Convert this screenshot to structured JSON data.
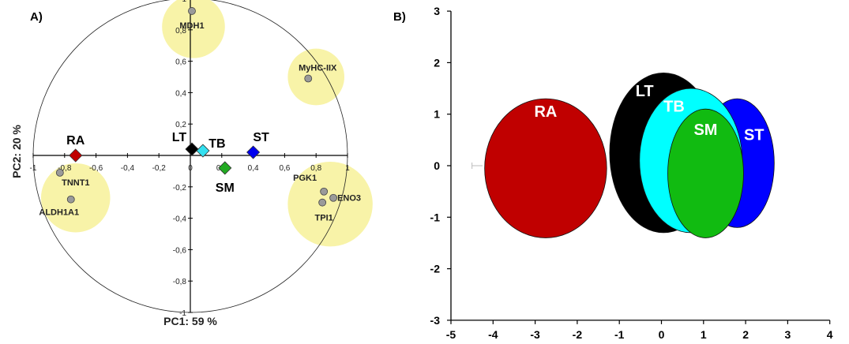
{
  "panels": [
    {
      "panel_label": "A)",
      "chart_data": {
        "type": "scatter",
        "xlabel": "PC1: 59 %",
        "ylabel": "PC2: 20 %",
        "xlim": [
          -1,
          1
        ],
        "ylim": [
          -1,
          1
        ],
        "x_ticks": [
          "-1",
          "-0,8",
          "-0,6",
          "-0,4",
          "-0,2",
          "0",
          "0,2",
          "0,4",
          "0,6",
          "0,8",
          "1"
        ],
        "y_ticks": [
          "-1",
          "-0,8",
          "-0,6",
          "-0,4",
          "-0,2",
          "0",
          "0,2",
          "0,4",
          "0,6",
          "0,8",
          "1"
        ],
        "unit_circle": true,
        "variables": [
          {
            "label": "MDH1",
            "x": 0.01,
            "y": 0.92
          },
          {
            "label": "MyHC-IIX",
            "x": 0.75,
            "y": 0.49
          },
          {
            "label": "TNNT1",
            "x": -0.83,
            "y": -0.11
          },
          {
            "label": "ALDH1A1",
            "x": -0.76,
            "y": -0.28
          },
          {
            "label": "PGK1",
            "x": 0.85,
            "y": -0.23
          },
          {
            "label": "ENO3",
            "x": 0.91,
            "y": -0.27
          },
          {
            "label": "TPI1",
            "x": 0.84,
            "y": -0.3
          }
        ],
        "variable_labels_shown": [
          "MDH1",
          "MyHC-IIX",
          "TNNT1",
          "ALDH1A1",
          "PGK1",
          "ENO3",
          "TPI1"
        ],
        "highlight_clusters": [
          {
            "x": 0.02,
            "y": 0.82,
            "r": 0.2
          },
          {
            "x": 0.8,
            "y": 0.5,
            "r": 0.18
          },
          {
            "x": -0.73,
            "y": -0.27,
            "r": 0.22
          },
          {
            "x": 0.89,
            "y": -0.31,
            "r": 0.27
          }
        ],
        "groups": [
          {
            "name": "RA",
            "x": -0.73,
            "y": 0.0,
            "color": "#c00000"
          },
          {
            "name": "LT",
            "x": 0.01,
            "y": 0.04,
            "color": "#000000"
          },
          {
            "name": "TB",
            "x": 0.08,
            "y": 0.03,
            "color": "#33e0f0"
          },
          {
            "name": "SM",
            "x": 0.22,
            "y": -0.08,
            "color": "#22aa22"
          },
          {
            "name": "ST",
            "x": 0.4,
            "y": 0.02,
            "color": "#0000ee"
          }
        ],
        "highlight_color": "#f8f3a8"
      }
    },
    {
      "panel_label": "B)",
      "chart_data": {
        "type": "scatter",
        "xlim": [
          -5,
          4
        ],
        "ylim": [
          -3,
          3
        ],
        "x_ticks": [
          "-5",
          "-4",
          "-3",
          "-2",
          "-1",
          "0",
          "1",
          "2",
          "3",
          "4"
        ],
        "y_ticks": [
          "3",
          "2",
          "1",
          "0",
          "-1",
          "-2",
          "-3"
        ],
        "ellipses": [
          {
            "name": "RA",
            "cx": -2.75,
            "cy": -0.05,
            "rx": 1.45,
            "ry": 1.35,
            "color": "#c00000"
          },
          {
            "name": "ST",
            "cx": 1.8,
            "cy": 0.05,
            "rx": 0.88,
            "ry": 1.25,
            "color": "#0000ff"
          },
          {
            "name": "LT",
            "cx": 0.05,
            "cy": 0.25,
            "rx": 1.28,
            "ry": 1.55,
            "color": "#000000"
          },
          {
            "name": "TB",
            "cx": 0.7,
            "cy": 0.1,
            "rx": 1.22,
            "ry": 1.4,
            "color": "#00ffff"
          },
          {
            "name": "SM",
            "cx": 1.05,
            "cy": -0.15,
            "rx": 0.9,
            "ry": 1.25,
            "color": "#11bb11"
          }
        ],
        "label_positions_data": [
          {
            "name": "RA",
            "x": -2.75,
            "y": 0.95
          },
          {
            "name": "LT",
            "x": -0.4,
            "y": 1.35
          },
          {
            "name": "TB",
            "x": 0.3,
            "y": 1.05
          },
          {
            "name": "SM",
            "x": 1.05,
            "y": 0.6
          },
          {
            "name": "ST",
            "x": 2.2,
            "y": 0.5
          }
        ],
        "error_bar": {
          "x_from": -4.5,
          "x_to": -4.25,
          "y": 0.0
        }
      }
    }
  ]
}
